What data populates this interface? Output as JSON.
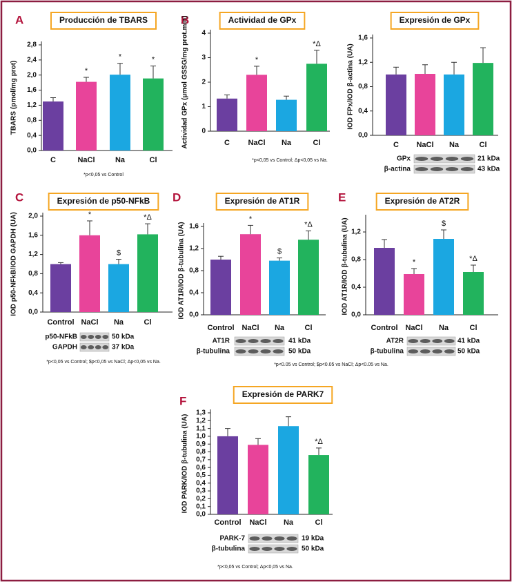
{
  "chart_data": [
    {
      "type": "bar",
      "panel": "A",
      "title": "Producción de TBARS",
      "ylabel": "TBARS (pmol/mg prot)",
      "categories": [
        "C",
        "NaCl",
        "Na",
        "Cl"
      ],
      "values": [
        1.3,
        1.82,
        2.01,
        1.91
      ],
      "errors": [
        0.1,
        0.12,
        0.3,
        0.33
      ],
      "annotations": [
        null,
        "*",
        "*",
        "*"
      ],
      "colors": [
        "#6b3fa0",
        "#e8449a",
        "#1ba7e1",
        "#22b35d"
      ],
      "ylim": [
        0,
        2.8
      ],
      "yticks": [
        {
          "value": 0,
          "label": "0,0"
        },
        {
          "value": 0.4,
          "label": "0,4"
        },
        {
          "value": 0.8,
          "label": "0,8"
        },
        {
          "value": 1.2,
          "label": "1,2"
        },
        {
          "value": 1.6,
          "label": "1,6"
        },
        {
          "value": 2.0,
          "label": "2,0"
        },
        {
          "value": 2.4,
          "label": "2,4"
        },
        {
          "value": 2.8,
          "label": "2,8"
        }
      ],
      "footnote": "*p<0,05 vs Control"
    },
    {
      "type": "bar",
      "panel": "B",
      "title": "Actividad de GPx",
      "ylabel": "Actividad GPx (µmol GSSG/mg prot.min)",
      "categories": [
        "C",
        "NaCl",
        "Na",
        "Cl"
      ],
      "values": [
        1.33,
        2.3,
        1.28,
        2.75
      ],
      "errors": [
        0.15,
        0.35,
        0.15,
        0.55
      ],
      "annotations": [
        null,
        "*",
        null,
        "*Δ"
      ],
      "colors": [
        "#6b3fa0",
        "#e8449a",
        "#1ba7e1",
        "#22b35d"
      ],
      "ylim": [
        0,
        4
      ],
      "yticks": [
        0,
        1,
        2,
        3,
        4
      ],
      "footnote": "*p<0,05 vs Control; Δp<0,05 vs Na."
    },
    {
      "type": "bar",
      "title": "Expresión de GPx",
      "ylabel": "IOD FPx/IOD β-actina (UA)",
      "categories": [
        "C",
        "NaCl",
        "Na",
        "Cl"
      ],
      "values": [
        1.0,
        1.01,
        1.0,
        1.19
      ],
      "errors": [
        0.12,
        0.15,
        0.2,
        0.25
      ],
      "annotations": [
        null,
        null,
        null,
        null
      ],
      "colors": [
        "#6b3fa0",
        "#e8449a",
        "#1ba7e1",
        "#22b35d"
      ],
      "ylim": [
        0,
        1.6
      ],
      "yticks": [
        {
          "value": 0,
          "label": "0,0"
        },
        {
          "value": 0.4,
          "label": "0,4"
        },
        {
          "value": 0.8,
          "label": "0,8"
        },
        {
          "value": 1.2,
          "label": "1,2"
        },
        {
          "value": 1.6,
          "label": "1,6"
        }
      ],
      "blot": [
        {
          "label": "GPx",
          "kda": "21 kDa"
        },
        {
          "label": "β-actina",
          "kda": "43 kDa"
        }
      ]
    },
    {
      "type": "bar",
      "panel": "C",
      "title": "Expresión de p50-NFkB",
      "ylabel": "IOD p50-NFkB/IOD GAPDH (UA)",
      "categories": [
        "Control",
        "NaCl",
        "Na",
        "Cl"
      ],
      "values": [
        1.0,
        1.6,
        1.0,
        1.62
      ],
      "errors": [
        0.03,
        0.3,
        0.1,
        0.22
      ],
      "annotations": [
        null,
        "*",
        "$",
        "*Δ"
      ],
      "colors": [
        "#6b3fa0",
        "#e8449a",
        "#1ba7e1",
        "#22b35d"
      ],
      "ylim": [
        0,
        2.0
      ],
      "yticks": [
        {
          "value": 0,
          "label": "0,0"
        },
        {
          "value": 0.4,
          "label": "0,4"
        },
        {
          "value": 0.8,
          "label": "0,8"
        },
        {
          "value": 1.2,
          "label": "1,2"
        },
        {
          "value": 1.6,
          "label": "1,6"
        },
        {
          "value": 2.0,
          "label": "2,0"
        }
      ],
      "blot": [
        {
          "label": "p50-NFkB",
          "kda": "50 kDa"
        },
        {
          "label": "GAPDH",
          "kda": "37 kDa"
        }
      ],
      "footnote": "*p<0,05 vs Control; $p<0,05 vs NaCl; Δp<0,05 vs Na."
    },
    {
      "type": "bar",
      "panel": "D",
      "title": "Expresión de AT1R",
      "ylabel": "IOD AT1R/IOD β-tubulina (UA)",
      "categories": [
        "Control",
        "NaCl",
        "Na",
        "Cl"
      ],
      "values": [
        1.0,
        1.46,
        0.98,
        1.36
      ],
      "errors": [
        0.06,
        0.16,
        0.05,
        0.16
      ],
      "annotations": [
        null,
        "*",
        "$",
        "*Δ"
      ],
      "colors": [
        "#6b3fa0",
        "#e8449a",
        "#1ba7e1",
        "#22b35d"
      ],
      "ylim": [
        0,
        1.6
      ],
      "yticks": [
        {
          "value": 0,
          "label": "0,0"
        },
        {
          "value": 0.4,
          "label": "0,4"
        },
        {
          "value": 0.8,
          "label": "0,8"
        },
        {
          "value": 1.2,
          "label": "1,2"
        },
        {
          "value": 1.6,
          "label": "1,6"
        }
      ],
      "blot": [
        {
          "label": "AT1R",
          "kda": "41 kDa"
        },
        {
          "label": "β-tubulina",
          "kda": "50 kDa"
        }
      ],
      "footnote": "*p<0.05 vs Control; $p<0.05 vs NaCl; Δp<0.05 vs Na."
    },
    {
      "type": "bar",
      "panel": "E",
      "title": "Expresión de AT2R",
      "ylabel": "IOD AT1R/IOD β-tubulina (UA)",
      "categories": [
        "Control",
        "NaCl",
        "Na",
        "Cl"
      ],
      "values": [
        0.97,
        0.59,
        1.1,
        0.62
      ],
      "errors": [
        0.12,
        0.08,
        0.13,
        0.1
      ],
      "annotations": [
        null,
        "*",
        "$",
        "*Δ"
      ],
      "colors": [
        "#6b3fa0",
        "#e8449a",
        "#1ba7e1",
        "#22b35d"
      ],
      "ylim": [
        0,
        1.4
      ],
      "yticks": [
        {
          "value": 0,
          "label": "0,0"
        },
        {
          "value": 0.4,
          "label": "0,4"
        },
        {
          "value": 0.8,
          "label": "0,8"
        },
        {
          "value": 1.2,
          "label": "1,2"
        }
      ],
      "blot": [
        {
          "label": "AT2R",
          "kda": "41 kDa"
        },
        {
          "label": "β-tubulina",
          "kda": "50 kDa"
        }
      ]
    },
    {
      "type": "bar",
      "panel": "F",
      "title": "Expresión de PARK7",
      "ylabel": "IOD PARK/IOD β-tubulina (UA)",
      "categories": [
        "Control",
        "NaCl",
        "Na",
        "Cl"
      ],
      "values": [
        1.0,
        0.89,
        1.13,
        0.76
      ],
      "errors": [
        0.1,
        0.08,
        0.12,
        0.09
      ],
      "annotations": [
        null,
        null,
        null,
        "*Δ"
      ],
      "colors": [
        "#6b3fa0",
        "#e8449a",
        "#1ba7e1",
        "#22b35d"
      ],
      "ylim": [
        0,
        1.3
      ],
      "yticks": [
        {
          "value": 0,
          "label": "0,0"
        },
        {
          "value": 0.1,
          "label": "0,1"
        },
        {
          "value": 0.2,
          "label": "0,2"
        },
        {
          "value": 0.3,
          "label": "0,3"
        },
        {
          "value": 0.4,
          "label": "0,4"
        },
        {
          "value": 0.5,
          "label": "0,5"
        },
        {
          "value": 0.6,
          "label": "0,6"
        },
        {
          "value": 0.7,
          "label": "0,7"
        },
        {
          "value": 0.8,
          "label": "0,8"
        },
        {
          "value": 0.9,
          "label": "0,9"
        },
        {
          "value": 1.0,
          "label": "1,0"
        },
        {
          "value": 1.1,
          "label": "1,1"
        },
        {
          "value": 1.2,
          "label": "1,2"
        },
        {
          "value": 1.3,
          "label": "1,3"
        }
      ],
      "blot": [
        {
          "label": "PARK-7",
          "kda": "19 kDa"
        },
        {
          "label": "β-tubulina",
          "kda": "50 kDa"
        }
      ],
      "footnote": "*p<0,05 vs Control; Δp<0,05 vs Na."
    }
  ]
}
